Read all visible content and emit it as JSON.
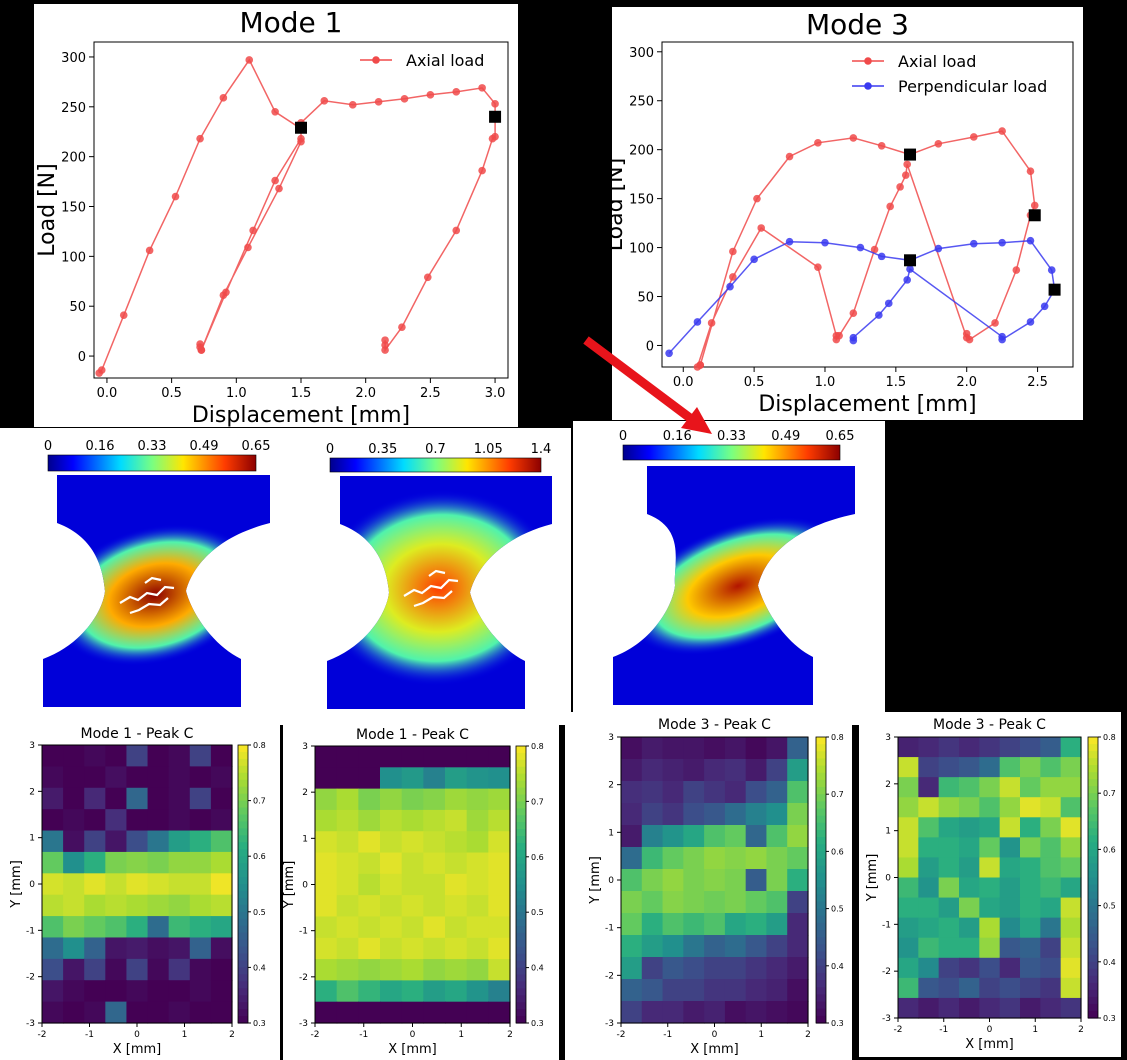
{
  "chart_data": [
    {
      "type": "line",
      "title": "Mode 1",
      "xlabel": "Displacement [mm]",
      "ylabel": "Load [N]",
      "xlim": [
        -0.1,
        3.1
      ],
      "ylim": [
        -22,
        315
      ],
      "xticks": [
        0.0,
        0.5,
        1.0,
        1.5,
        2.0,
        2.5,
        3.0
      ],
      "xtick_labels": [
        "0.0",
        "0.5",
        "1.0",
        "1.5",
        "2.0",
        "2.5",
        "3.0"
      ],
      "yticks": [
        0,
        50,
        100,
        150,
        200,
        250,
        300
      ],
      "legend_position": "top-right",
      "series": [
        {
          "name": "Axial load",
          "color": "#f04a4a",
          "x": [
            -0.06,
            -0.04,
            0.13,
            0.33,
            0.53,
            0.72,
            0.9,
            1.1,
            1.3,
            1.5,
            1.5,
            1.3,
            1.13,
            0.92,
            0.73,
            0.72,
            0.72,
            0.73,
            0.9,
            1.09,
            1.33,
            1.5,
            1.5,
            1.68,
            1.9,
            2.1,
            2.3,
            2.5,
            2.7,
            2.9,
            3.0,
            3.0,
            2.98,
            2.9,
            2.7,
            2.48,
            2.28,
            2.15,
            2.15,
            2.15
          ],
          "y": [
            -17,
            -14,
            41,
            106,
            160,
            218,
            259,
            297,
            245,
            228,
            218,
            176,
            126,
            64,
            6,
            9,
            12,
            6,
            61,
            109,
            168,
            215,
            234,
            256,
            252,
            255,
            258,
            262,
            265,
            269,
            253,
            220,
            218,
            186,
            126,
            79,
            29,
            6,
            11,
            16
          ]
        }
      ],
      "markers": {
        "color": "#000000",
        "points": [
          [
            1.5,
            229
          ],
          [
            3.0,
            240
          ]
        ]
      }
    },
    {
      "type": "line",
      "title": "Mode 3",
      "xlabel": "Displacement [mm]",
      "ylabel": "Load [N]",
      "xlim": [
        -0.15,
        2.75
      ],
      "ylim": [
        -22,
        310
      ],
      "xticks": [
        0.0,
        0.5,
        1.0,
        1.5,
        2.0,
        2.5
      ],
      "xtick_labels": [
        "0.0",
        "0.5",
        "1.0",
        "1.5",
        "2.0",
        "2.5"
      ],
      "yticks": [
        0,
        50,
        100,
        150,
        200,
        250,
        300
      ],
      "legend_position": "top-right",
      "series": [
        {
          "name": "Axial load",
          "color": "#f04a4a",
          "x": [
            0.12,
            0.12,
            0.35,
            0.52,
            0.75,
            0.95,
            1.2,
            1.4,
            1.6,
            1.6,
            1.8,
            2.05,
            2.25,
            2.45,
            2.48,
            2.45,
            2.35,
            2.2,
            2.02,
            2.0,
            2.0,
            1.58,
            1.57,
            1.53,
            1.46,
            1.35,
            1.2,
            1.1,
            1.08,
            1.08,
            0.95,
            0.55,
            0.35,
            0.2,
            0.1
          ],
          "y": [
            -20,
            -20,
            96,
            150,
            193,
            207,
            212,
            204,
            195,
            195,
            206,
            213,
            219,
            178,
            143,
            133,
            77,
            23,
            6,
            12,
            8,
            185,
            174,
            162,
            142,
            98,
            33,
            10,
            6,
            10,
            80,
            120,
            70,
            23,
            -22
          ]
        },
        {
          "name": "Perpendicular load",
          "color": "#3a3af0",
          "x": [
            -0.1,
            0.1,
            0.33,
            0.5,
            0.75,
            1.0,
            1.25,
            1.4,
            1.6,
            1.6,
            1.8,
            2.05,
            2.25,
            2.45,
            2.6,
            2.62,
            2.62,
            2.55,
            2.45,
            2.25,
            2.25,
            1.6,
            1.58,
            1.45,
            1.38,
            1.2,
            1.2
          ],
          "y": [
            -8,
            24,
            60,
            88,
            106,
            105,
            100,
            91,
            87,
            87,
            99,
            104,
            105,
            107,
            77,
            57,
            57,
            40,
            24,
            6,
            9,
            78,
            67,
            43,
            31,
            8,
            5
          ]
        }
      ],
      "markers": {
        "color": "#000000",
        "points": [
          [
            1.6,
            195
          ],
          [
            1.6,
            87
          ],
          [
            2.48,
            133
          ],
          [
            2.62,
            57
          ]
        ]
      }
    },
    {
      "type": "heatmap",
      "title": "Mode 1 - Peak C",
      "xlabel": "X [mm]",
      "ylabel": "Y [mm]",
      "xlim": [
        -2,
        2
      ],
      "ylim": [
        -3,
        3
      ],
      "xticks": [
        -2,
        -1,
        0,
        1,
        2
      ],
      "yticks": [
        -3,
        -2,
        -1,
        0,
        1,
        2,
        3
      ],
      "clim": [
        0.3,
        0.8
      ],
      "colorbar_ticks": [
        0.3,
        0.4,
        0.5,
        0.6,
        0.7,
        0.8
      ],
      "colormap": "viridis",
      "grid_rows": [
        [
          0.3,
          0.3,
          0.31,
          0.3,
          0.4,
          0.3,
          0.31,
          0.4,
          0.3
        ],
        [
          0.31,
          0.3,
          0.3,
          0.32,
          0.3,
          0.3,
          0.31,
          0.3,
          0.31
        ],
        [
          0.34,
          0.3,
          0.36,
          0.3,
          0.47,
          0.3,
          0.31,
          0.4,
          0.3
        ],
        [
          0.3,
          0.31,
          0.3,
          0.37,
          0.3,
          0.3,
          0.31,
          0.3,
          0.31
        ],
        [
          0.5,
          0.32,
          0.4,
          0.33,
          0.42,
          0.5,
          0.58,
          0.62,
          0.66
        ],
        [
          0.68,
          0.55,
          0.62,
          0.7,
          0.71,
          0.7,
          0.72,
          0.72,
          0.74
        ],
        [
          0.77,
          0.76,
          0.78,
          0.76,
          0.78,
          0.77,
          0.76,
          0.76,
          0.79
        ],
        [
          0.75,
          0.76,
          0.74,
          0.75,
          0.74,
          0.73,
          0.72,
          0.74,
          0.75
        ],
        [
          0.66,
          0.7,
          0.68,
          0.66,
          0.62,
          0.48,
          0.64,
          0.62,
          0.6
        ],
        [
          0.48,
          0.55,
          0.46,
          0.33,
          0.34,
          0.32,
          0.33,
          0.46,
          0.32
        ],
        [
          0.42,
          0.33,
          0.4,
          0.31,
          0.4,
          0.31,
          0.38,
          0.31,
          0.3
        ],
        [
          0.33,
          0.31,
          0.3,
          0.3,
          0.31,
          0.3,
          0.3,
          0.31,
          0.3
        ],
        [
          0.31,
          0.3,
          0.31,
          0.47,
          0.3,
          0.3,
          0.31,
          0.3,
          0.3
        ]
      ]
    },
    {
      "type": "heatmap",
      "title": "Mode 1 - Peak C",
      "xlabel": "X [mm]",
      "ylabel": "Y [mm]",
      "xlim": [
        -2,
        2
      ],
      "ylim": [
        -3,
        3
      ],
      "xticks": [
        -2,
        -1,
        0,
        1,
        2
      ],
      "yticks": [
        -3,
        -2,
        -1,
        0,
        1,
        2,
        3
      ],
      "clim": [
        0.3,
        0.8
      ],
      "colorbar_ticks": [
        0.3,
        0.4,
        0.5,
        0.6,
        0.7,
        0.8
      ],
      "colormap": "viridis",
      "grid_rows": [
        [
          0.3,
          0.3,
          0.3,
          0.3,
          0.3,
          0.3,
          0.3,
          0.3,
          0.3
        ],
        [
          0.3,
          0.3,
          0.3,
          0.55,
          0.57,
          0.52,
          0.58,
          0.56,
          0.55
        ],
        [
          0.72,
          0.74,
          0.7,
          0.72,
          0.7,
          0.71,
          0.73,
          0.72,
          0.73
        ],
        [
          0.74,
          0.75,
          0.73,
          0.75,
          0.74,
          0.75,
          0.76,
          0.73,
          0.75
        ],
        [
          0.77,
          0.76,
          0.78,
          0.76,
          0.77,
          0.76,
          0.75,
          0.74,
          0.77
        ],
        [
          0.78,
          0.77,
          0.76,
          0.78,
          0.76,
          0.77,
          0.76,
          0.77,
          0.78
        ],
        [
          0.78,
          0.77,
          0.75,
          0.77,
          0.76,
          0.76,
          0.78,
          0.77,
          0.78
        ],
        [
          0.78,
          0.76,
          0.77,
          0.76,
          0.77,
          0.76,
          0.77,
          0.76,
          0.78
        ],
        [
          0.76,
          0.77,
          0.76,
          0.77,
          0.76,
          0.78,
          0.76,
          0.77,
          0.77
        ],
        [
          0.77,
          0.76,
          0.78,
          0.76,
          0.77,
          0.76,
          0.77,
          0.76,
          0.78
        ],
        [
          0.74,
          0.73,
          0.72,
          0.73,
          0.74,
          0.72,
          0.73,
          0.72,
          0.76
        ],
        [
          0.62,
          0.66,
          0.63,
          0.6,
          0.62,
          0.58,
          0.6,
          0.56,
          0.52
        ],
        [
          0.3,
          0.3,
          0.3,
          0.3,
          0.3,
          0.3,
          0.3,
          0.3,
          0.3
        ]
      ]
    },
    {
      "type": "heatmap",
      "title": "Mode 3 - Peak C",
      "xlabel": "X [mm]",
      "ylabel": "Y [mm]",
      "xlim": [
        -2,
        2
      ],
      "ylim": [
        -3,
        3
      ],
      "xticks": [
        -2,
        -1,
        0,
        1,
        2
      ],
      "yticks": [
        -3,
        -2,
        -1,
        0,
        1,
        2,
        3
      ],
      "clim": [
        0.3,
        0.8
      ],
      "colorbar_ticks": [
        0.3,
        0.4,
        0.5,
        0.6,
        0.7,
        0.8
      ],
      "colormap": "viridis",
      "grid_rows": [
        [
          0.32,
          0.34,
          0.33,
          0.33,
          0.32,
          0.33,
          0.31,
          0.33,
          0.46
        ],
        [
          0.34,
          0.36,
          0.35,
          0.34,
          0.36,
          0.37,
          0.34,
          0.4,
          0.58
        ],
        [
          0.37,
          0.38,
          0.36,
          0.4,
          0.38,
          0.36,
          0.42,
          0.46,
          0.66
        ],
        [
          0.36,
          0.4,
          0.38,
          0.42,
          0.44,
          0.48,
          0.52,
          0.55,
          0.7
        ],
        [
          0.34,
          0.52,
          0.56,
          0.6,
          0.66,
          0.68,
          0.47,
          0.66,
          0.72
        ],
        [
          0.48,
          0.64,
          0.68,
          0.7,
          0.72,
          0.71,
          0.72,
          0.7,
          0.68
        ],
        [
          0.66,
          0.7,
          0.72,
          0.7,
          0.71,
          0.7,
          0.45,
          0.7,
          0.62
        ],
        [
          0.7,
          0.68,
          0.71,
          0.7,
          0.69,
          0.7,
          0.68,
          0.66,
          0.4
        ],
        [
          0.68,
          0.62,
          0.66,
          0.64,
          0.66,
          0.6,
          0.62,
          0.58,
          0.36
        ],
        [
          0.62,
          0.58,
          0.55,
          0.5,
          0.46,
          0.48,
          0.44,
          0.4,
          0.36
        ],
        [
          0.58,
          0.4,
          0.44,
          0.42,
          0.4,
          0.4,
          0.38,
          0.36,
          0.34
        ],
        [
          0.46,
          0.44,
          0.4,
          0.4,
          0.38,
          0.38,
          0.36,
          0.35,
          0.32
        ],
        [
          0.4,
          0.36,
          0.36,
          0.34,
          0.35,
          0.32,
          0.33,
          0.32,
          0.31
        ]
      ]
    },
    {
      "type": "heatmap",
      "title": "Mode 3 - Peak C",
      "xlabel": "X [mm]",
      "ylabel": "Y [mm]",
      "xlim": [
        -2,
        2
      ],
      "ylim": [
        -3,
        3
      ],
      "xticks": [
        -2,
        -1,
        0,
        1,
        2
      ],
      "yticks": [
        -3,
        -2,
        -1,
        0,
        1,
        2,
        3
      ],
      "clim": [
        0.3,
        0.8
      ],
      "colorbar_ticks": [
        0.3,
        0.4,
        0.5,
        0.6,
        0.7,
        0.8
      ],
      "colormap": "viridis",
      "grid_rows": [
        [
          0.35,
          0.36,
          0.38,
          0.36,
          0.38,
          0.4,
          0.42,
          0.45,
          0.62
        ],
        [
          0.76,
          0.4,
          0.42,
          0.44,
          0.48,
          0.66,
          0.7,
          0.66,
          0.7
        ],
        [
          0.7,
          0.36,
          0.64,
          0.66,
          0.7,
          0.76,
          0.68,
          0.72,
          0.72
        ],
        [
          0.72,
          0.76,
          0.72,
          0.7,
          0.66,
          0.72,
          0.78,
          0.76,
          0.66
        ],
        [
          0.76,
          0.66,
          0.6,
          0.58,
          0.6,
          0.76,
          0.62,
          0.7,
          0.78
        ],
        [
          0.76,
          0.62,
          0.62,
          0.6,
          0.68,
          0.56,
          0.7,
          0.66,
          0.72
        ],
        [
          0.74,
          0.58,
          0.62,
          0.58,
          0.76,
          0.6,
          0.62,
          0.66,
          0.68
        ],
        [
          0.64,
          0.56,
          0.7,
          0.6,
          0.62,
          0.58,
          0.62,
          0.64,
          0.6
        ],
        [
          0.62,
          0.62,
          0.58,
          0.7,
          0.6,
          0.58,
          0.62,
          0.6,
          0.76
        ],
        [
          0.58,
          0.6,
          0.62,
          0.58,
          0.74,
          0.54,
          0.6,
          0.5,
          0.74
        ],
        [
          0.56,
          0.64,
          0.62,
          0.62,
          0.72,
          0.44,
          0.46,
          0.4,
          0.76
        ],
        [
          0.6,
          0.54,
          0.4,
          0.38,
          0.42,
          0.36,
          0.44,
          0.42,
          0.78
        ],
        [
          0.64,
          0.44,
          0.42,
          0.46,
          0.4,
          0.42,
          0.4,
          0.38,
          0.76
        ],
        [
          0.36,
          0.34,
          0.36,
          0.34,
          0.36,
          0.38,
          0.34,
          0.36,
          0.38
        ]
      ]
    }
  ],
  "strain_maps": [
    {
      "colorbar_ticks": [
        "0",
        "0.16",
        "0.33",
        "0.49",
        "0.65"
      ]
    },
    {
      "colorbar_ticks": [
        "0",
        "0.35",
        "0.7",
        "1.05",
        "1.4"
      ]
    },
    {
      "colorbar_ticks": [
        "0",
        "0.16",
        "0.33",
        "0.49",
        "0.65"
      ]
    }
  ],
  "colors": {
    "axial": "#f04a4a",
    "perpendicular": "#3a3af0",
    "marker": "#000000",
    "arrow": "#e8141b"
  }
}
